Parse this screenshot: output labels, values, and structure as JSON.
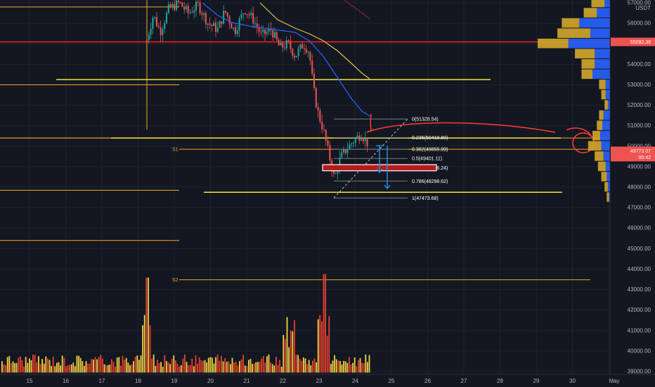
{
  "chart_data": {
    "type": "candlestick",
    "symbol_quote": "USDT",
    "x_ticks": [
      "15",
      "16",
      "17",
      "18",
      "19",
      "20",
      "21",
      "22",
      "23",
      "24",
      "25",
      "26",
      "27",
      "28",
      "29",
      "30",
      "May"
    ],
    "y_ticks": [
      "39000.00",
      "40000.00",
      "41000.00",
      "42000.00",
      "43000.00",
      "44000.00",
      "45000.00",
      "46000.00",
      "47000.00",
      "48000.00",
      "49000.00",
      "50000.00",
      "51000.00",
      "52000.00",
      "53000.00",
      "54000.00",
      "55000.00",
      "56000.00",
      "57000.00"
    ],
    "price_range": [
      38700,
      57100
    ],
    "last_price_label": "49773.07",
    "countdown_label": "00:42",
    "red_line_label": "55092.38",
    "red_line_price": 55092.38,
    "fib_levels": [
      {
        "label": "0(51328.54)",
        "price": 51328.54
      },
      {
        "label": "0.236(50418.80)",
        "price": 50418.8
      },
      {
        "label": "0.382(49855.99)",
        "price": 49855.99
      },
      {
        "label": "0.5(49401.11)",
        "price": 49401.11
      },
      {
        "label": "0.618(48946.24)",
        "price": 48946.24
      },
      {
        "label": "0.786(48298.62)",
        "price": 48298.62
      },
      {
        "label": "1(47473.68)",
        "price": 47473.68
      }
    ],
    "pivots": [
      {
        "label": "S1",
        "price": 49850
      },
      {
        "label": "S2",
        "price": 43480
      }
    ],
    "yellow_lines": [
      53250,
      50400,
      47750
    ],
    "orange_lines": [
      56800,
      53000,
      50400,
      47850,
      45400
    ],
    "volume_profile": [
      {
        "price": 57000,
        "vol_up": 0.12,
        "vol_down": 0.05
      },
      {
        "price": 56500,
        "vol_up": 0.12,
        "vol_down": 0.12
      },
      {
        "price": 56000,
        "vol_up": 0.16,
        "vol_down": 0.28
      },
      {
        "price": 55500,
        "vol_up": 0.3,
        "vol_down": 0.18
      },
      {
        "price": 55000,
        "vol_up": 0.28,
        "vol_down": 0.38
      },
      {
        "price": 54500,
        "vol_up": 0.18,
        "vol_down": 0.14
      },
      {
        "price": 54000,
        "vol_up": 0.12,
        "vol_down": 0.14
      },
      {
        "price": 53500,
        "vol_up": 0.1,
        "vol_down": 0.16
      },
      {
        "price": 53000,
        "vol_up": 0.06,
        "vol_down": 0.04
      },
      {
        "price": 52500,
        "vol_up": 0.04,
        "vol_down": 0.04
      },
      {
        "price": 52000,
        "vol_up": 0.03,
        "vol_down": 0.02
      },
      {
        "price": 51500,
        "vol_up": 0.04,
        "vol_down": 0.06
      },
      {
        "price": 51000,
        "vol_up": 0.05,
        "vol_down": 0.07
      },
      {
        "price": 50500,
        "vol_up": 0.07,
        "vol_down": 0.09
      },
      {
        "price": 50000,
        "vol_up": 0.12,
        "vol_down": 0.08
      },
      {
        "price": 49500,
        "vol_up": 0.08,
        "vol_down": 0.06
      },
      {
        "price": 49000,
        "vol_up": 0.07,
        "vol_down": 0.04
      },
      {
        "price": 48500,
        "vol_up": 0.05,
        "vol_down": 0.03
      },
      {
        "price": 48000,
        "vol_up": 0.03,
        "vol_down": 0.02
      },
      {
        "price": 47500,
        "vol_up": 0.02,
        "vol_down": 0.01
      }
    ],
    "colors": {
      "background": "#131722",
      "grid": "#1e222d",
      "candle_up": "#26a69a",
      "candle_down": "#ef5350",
      "volume_up": "#f5d142",
      "volume_down": "#e8412c",
      "ma_fast": "#2962ff",
      "ma_slow": "#e0c34a",
      "fib_line": "#787b86",
      "red_line": "#ff1d1d",
      "orange_line": "#f5a623",
      "yellow_line": "#f7e13a",
      "vp_up": "#d4a72c",
      "vp_down": "#2962ff",
      "target_zone": "#b71c1c",
      "arrow": "#2196f3",
      "annotation": "#ff3b30",
      "last_price_badge": "#ef5350",
      "red_line_badge": "#ef5350"
    }
  }
}
